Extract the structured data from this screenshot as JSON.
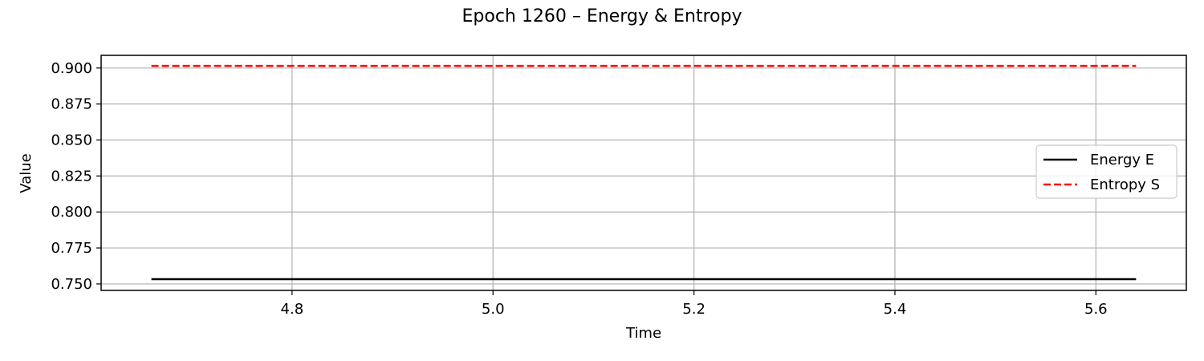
{
  "chart_data": {
    "type": "line",
    "title": "Epoch 1260 – Energy & Entropy",
    "xlabel": "Time",
    "ylabel": "Value",
    "xlim": [
      4.61,
      5.69
    ],
    "ylim": [
      0.7455,
      0.9088
    ],
    "xticks": [
      4.8,
      5.0,
      5.2,
      5.4,
      5.6
    ],
    "xtick_labels": [
      "4.8",
      "5.0",
      "5.2",
      "5.4",
      "5.6"
    ],
    "yticks": [
      0.75,
      0.775,
      0.8,
      0.825,
      0.85,
      0.875,
      0.9
    ],
    "ytick_labels": [
      "0.750",
      "0.775",
      "0.800",
      "0.825",
      "0.850",
      "0.875",
      "0.900"
    ],
    "grid": true,
    "legend_position": "center-right",
    "series": [
      {
        "name": "Energy E",
        "color": "#000000",
        "style": "solid",
        "x": [
          4.66,
          5.64
        ],
        "y": [
          0.7533,
          0.7533
        ]
      },
      {
        "name": "Entropy S",
        "color": "#ff0000",
        "style": "dashed",
        "x": [
          4.66,
          5.64
        ],
        "y": [
          0.9015,
          0.9015
        ]
      }
    ]
  }
}
